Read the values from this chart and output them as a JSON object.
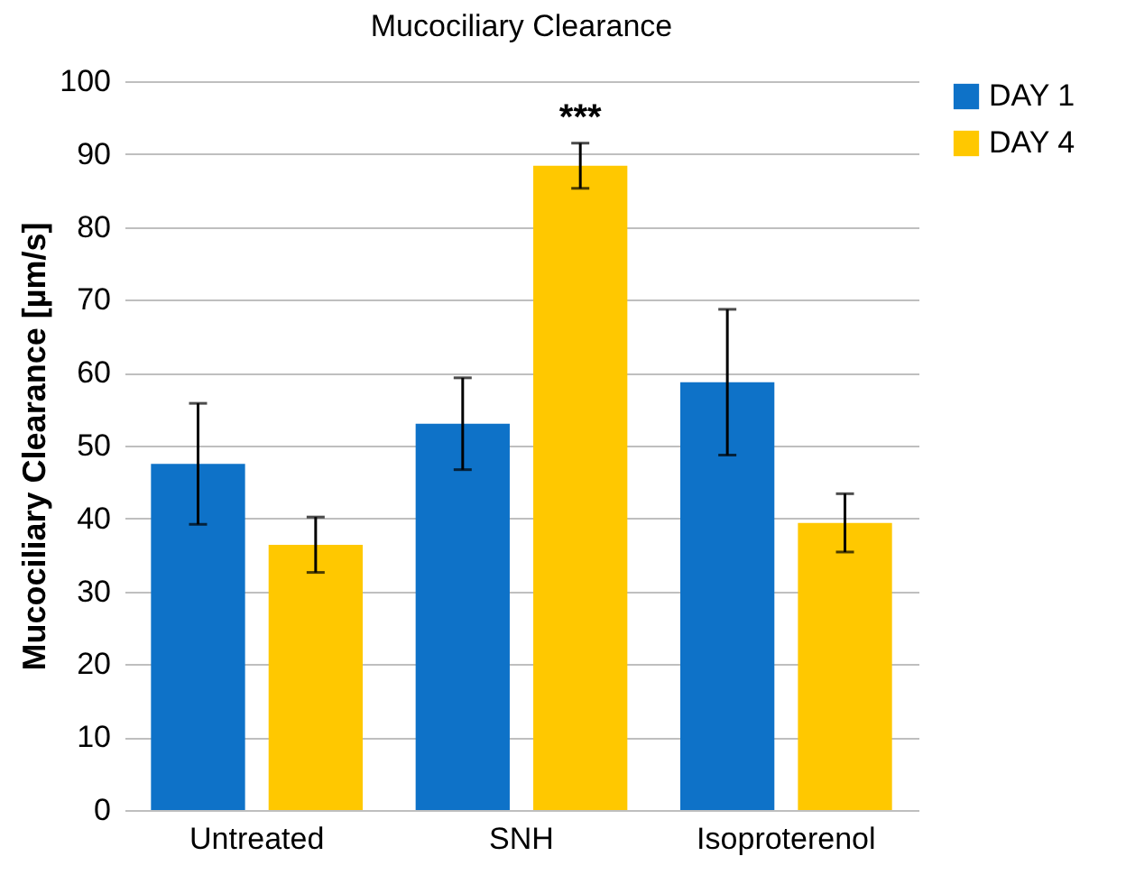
{
  "chart_data": {
    "type": "bar",
    "title": "Mucociliary Clearance",
    "ylabel": "Mucociliary Clearance [µm/s]",
    "categories": [
      "Untreated",
      "SNH",
      "Isoproterenol"
    ],
    "series": [
      {
        "name": "DAY 1",
        "color": "#0e72c8",
        "values": [
          47.5,
          53,
          58.7
        ],
        "errors": [
          8.3,
          6.3,
          10
        ]
      },
      {
        "name": "DAY 4",
        "color": "#ffc800",
        "values": [
          36.4,
          88.4,
          39.4
        ],
        "errors": [
          3.8,
          3.1,
          4
        ]
      }
    ],
    "ylim": [
      0,
      100
    ],
    "yticks": [
      0,
      10,
      20,
      30,
      40,
      50,
      60,
      70,
      80,
      90,
      100
    ],
    "grid": "y",
    "legend": "right",
    "annotations": [
      "***"
    ]
  }
}
